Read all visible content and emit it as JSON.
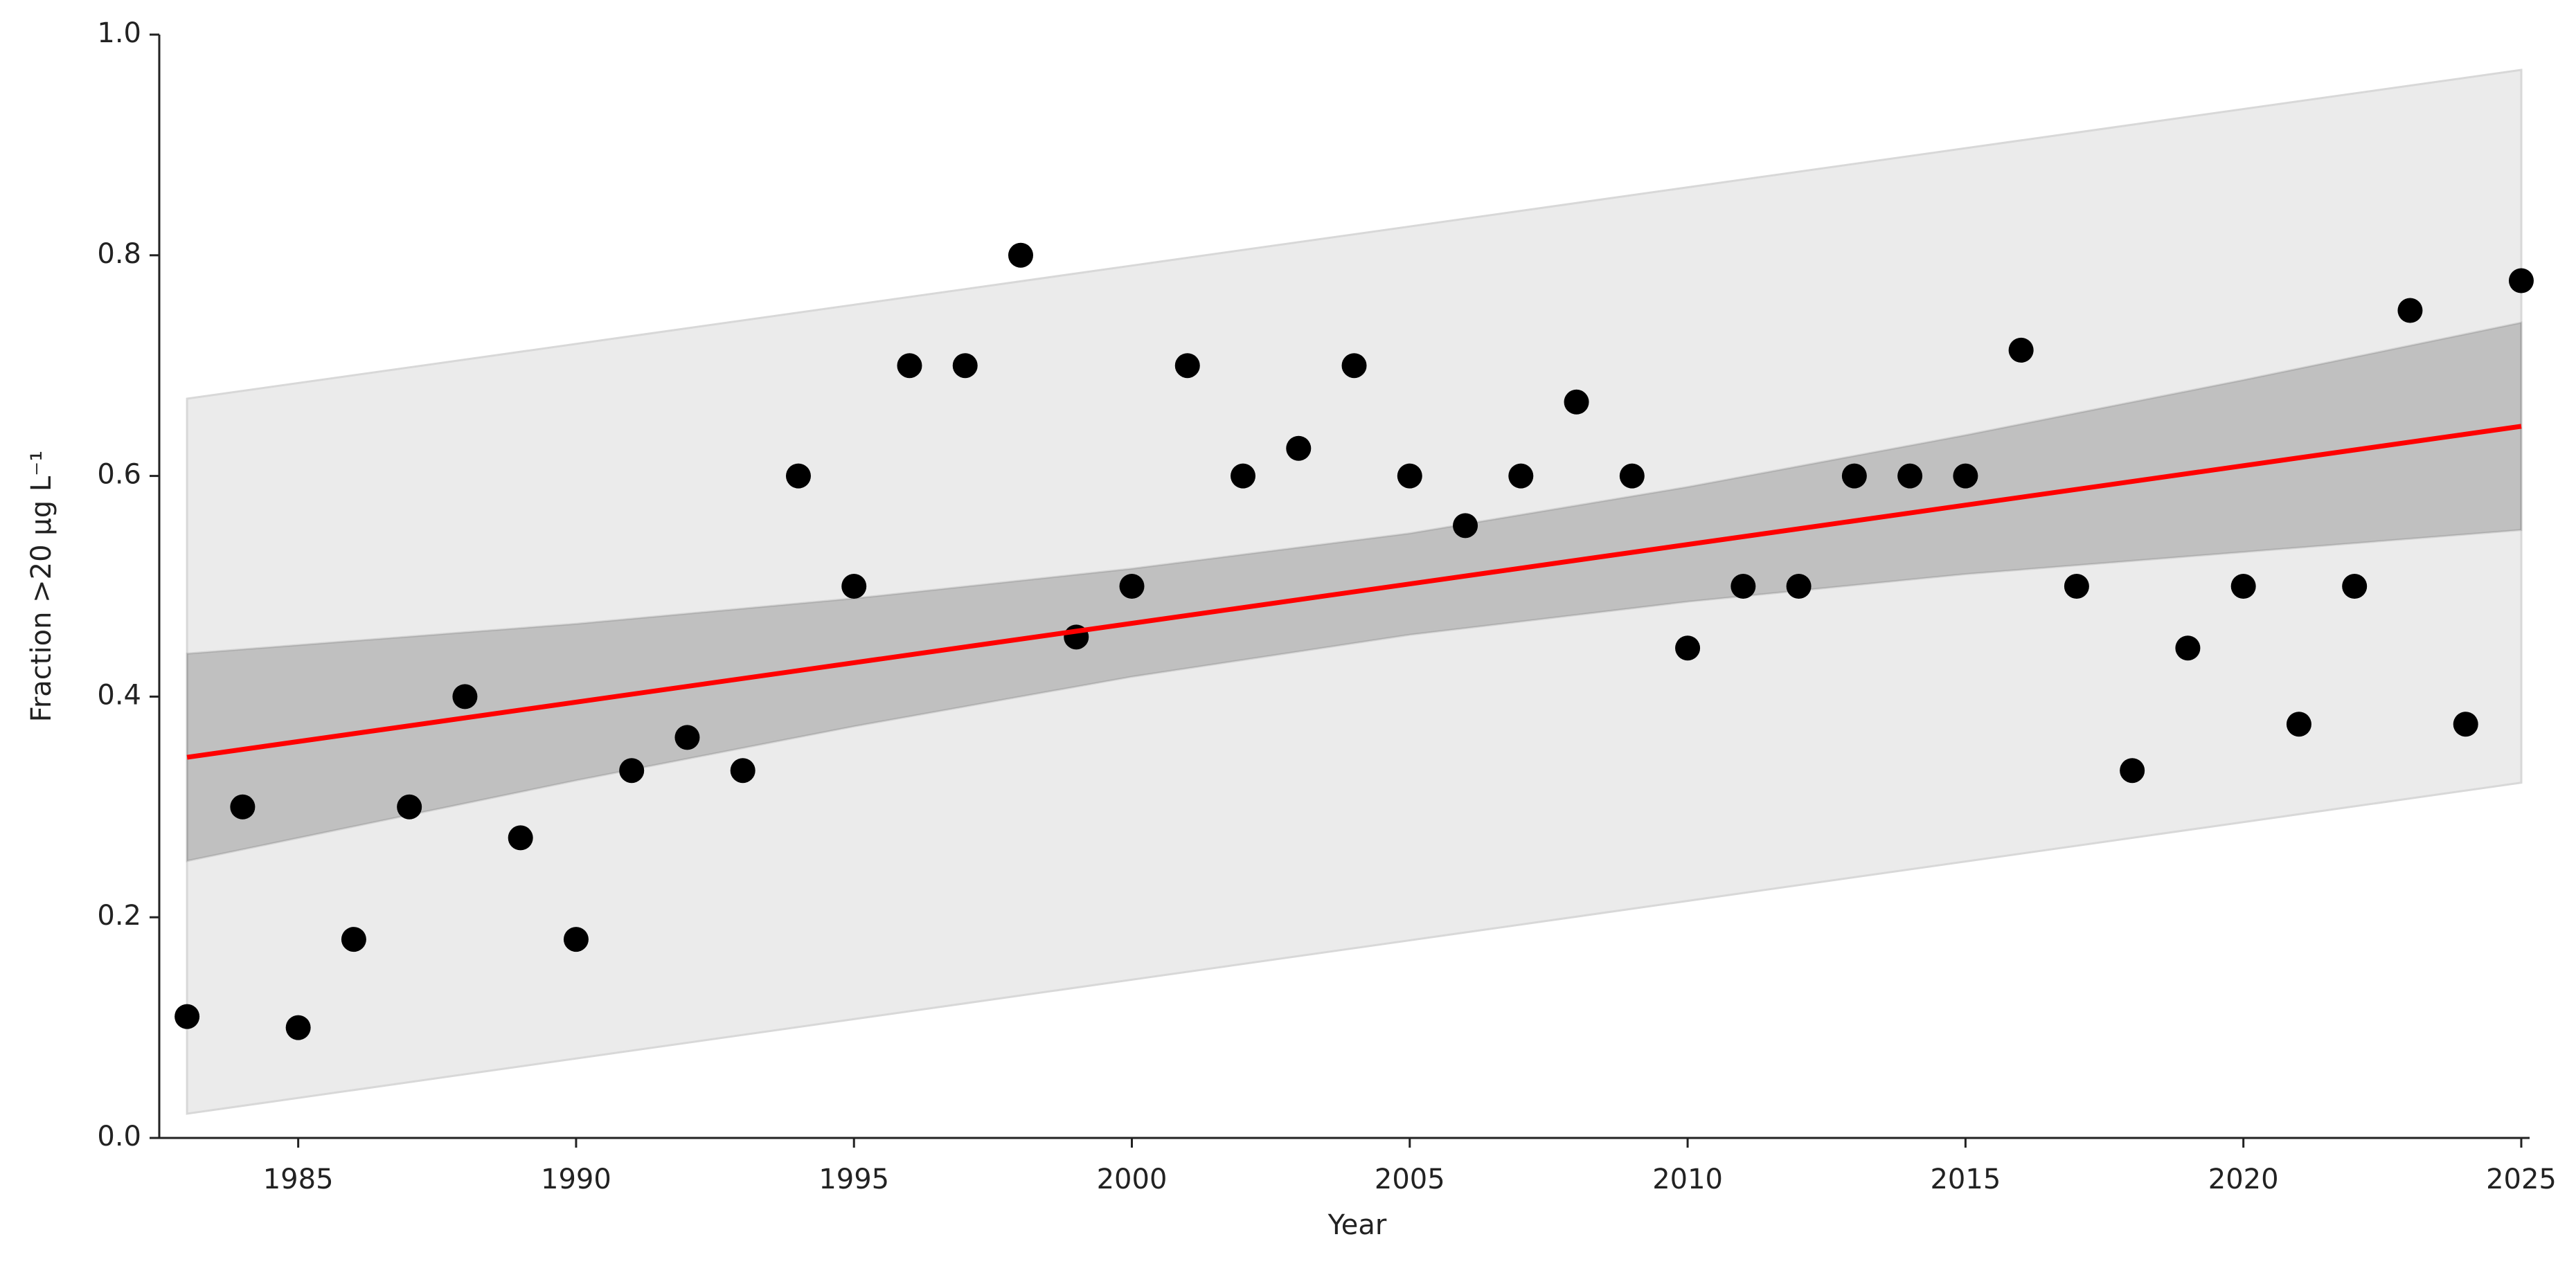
{
  "chart_data": {
    "type": "scatter",
    "xlabel": "Year",
    "ylabel": "Fraction >20 µg L⁻¹",
    "xlim": [
      1982.5,
      2025.15
    ],
    "ylim": [
      0,
      1
    ],
    "xticks": [
      1985,
      1990,
      1995,
      2000,
      2005,
      2010,
      2015,
      2020,
      2025
    ],
    "yticks": [
      {
        "value": 0,
        "label": "0.0"
      },
      0.2,
      0.4,
      0.6,
      0.8,
      {
        "value": 1,
        "label": "1.0"
      }
    ],
    "points": {
      "color": "#000000",
      "x": [
        1983,
        1984,
        1985,
        1986,
        1987,
        1988,
        1989,
        1990,
        1991,
        1992,
        1993,
        1994,
        1995,
        1996,
        1997,
        1998,
        1999,
        2000,
        2001,
        2002,
        2003,
        2004,
        2005,
        2006,
        2007,
        2008,
        2009,
        2010,
        2011,
        2012,
        2013,
        2014,
        2015,
        2016,
        2017,
        2018,
        2019,
        2020,
        2021,
        2022,
        2023,
        2024,
        2025
      ],
      "values": [
        0.11,
        0.3,
        0.1,
        0.18,
        0.3,
        0.4,
        0.272,
        0.18,
        0.333,
        0.363,
        0.333,
        0.6,
        0.5,
        0.7,
        0.7,
        0.8,
        0.454,
        0.5,
        0.7,
        0.6,
        0.625,
        0.7,
        0.6,
        0.555,
        0.6,
        0.667,
        0.6,
        0.444,
        0.5,
        0.5,
        0.6,
        0.6,
        0.6,
        0.714,
        0.5,
        0.333,
        0.444,
        0.5,
        0.375,
        0.5,
        0.75,
        0.375,
        0.777
      ]
    },
    "fit": {
      "color": "#ff0000",
      "x": [
        1983,
        2025
      ],
      "values": [
        0.345,
        0.645
      ]
    },
    "confidence_band": {
      "color": "#000000",
      "x": [
        1983,
        1990,
        1995,
        2000,
        2005,
        2010,
        2015,
        2020,
        2025
      ],
      "lower": [
        0.251,
        0.324,
        0.373,
        0.418,
        0.456,
        0.486,
        0.511,
        0.531,
        0.551
      ],
      "upper": [
        0.439,
        0.466,
        0.489,
        0.516,
        0.548,
        0.59,
        0.637,
        0.687,
        0.739
      ]
    },
    "prediction_band": {
      "color": "#ebebeb",
      "x": [
        1983,
        2025
      ],
      "lower": [
        0.022,
        0.322
      ],
      "upper": [
        0.67,
        0.968
      ]
    }
  }
}
